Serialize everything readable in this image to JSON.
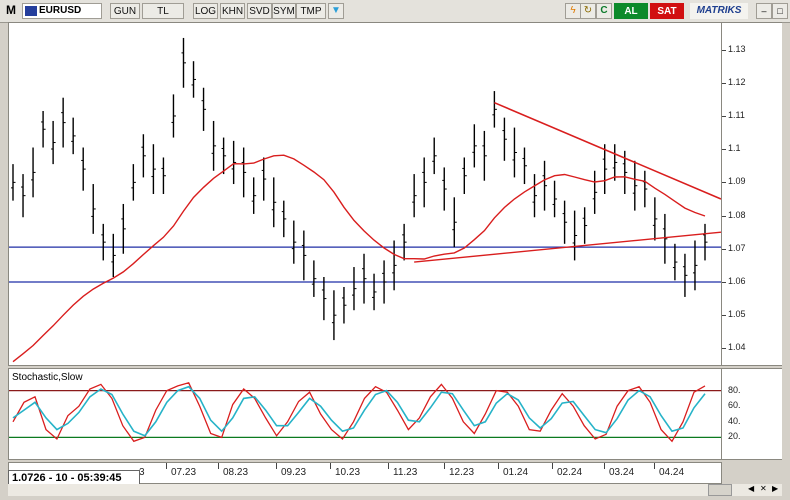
{
  "toolbar": {
    "menu_label": "M",
    "symbol": "EURUSD",
    "buttons": [
      "GUN",
      "TL",
      "LOG",
      "KHN",
      "SVD",
      "SYM",
      "TMP"
    ],
    "buy_label": "AL",
    "sell_label": "SAT",
    "brand": "MATRIKS",
    "colors": {
      "buy": "#0c8a2a",
      "sell": "#d10f10",
      "brand_text": "#1f3f8f"
    }
  },
  "chart": {
    "price_ticks": [
      "1.13",
      "1.12",
      "1.11",
      "1.1",
      "1.09",
      "1.08",
      "1.07",
      "1.06",
      "1.05",
      "1.04"
    ],
    "date_labels": [
      "07.23",
      "08.23",
      "09.23",
      "10.23",
      "11.23",
      "12.23",
      "01.24",
      "02.24",
      "03.24",
      "04.24"
    ],
    "oscillator_title": "Stochastic,Slow",
    "oscillator_ticks": [
      "80.",
      "60.",
      "40.",
      "20."
    ],
    "status_readout": "1.0726 - 10 - 05:39:45",
    "date_partial": "3"
  },
  "chart_data": {
    "type": "line",
    "title": "",
    "ylim": [
      1.035,
      1.138
    ],
    "horizontal_levels": [
      1.0705,
      1.06
    ],
    "price_series_note": "",
    "series": [
      {
        "name": "",
        "values": [
          1.09,
          1.086,
          1.093,
          1.106,
          1.102,
          1.108,
          1.104,
          1.094,
          1.082,
          1.072,
          1.068,
          1.076,
          1.09,
          1.098,
          1.094,
          1.092,
          1.11,
          1.126,
          1.121,
          1.112,
          1.101,
          1.098,
          1.096,
          1.093,
          1.086,
          1.091,
          1.084,
          1.079,
          1.072,
          1.068,
          1.061,
          1.055,
          1.05,
          1.053,
          1.058,
          1.061,
          1.057,
          1.06,
          1.065,
          1.072,
          1.086,
          1.09,
          1.098,
          1.088,
          1.078,
          1.092,
          1.101,
          1.098,
          1.112,
          1.103,
          1.099,
          1.095,
          1.086,
          1.089,
          1.085,
          1.078,
          1.074,
          1.077,
          1.087,
          1.094,
          1.096,
          1.093,
          1.089,
          1.088,
          1.079,
          1.073,
          1.066,
          1.062,
          1.065,
          1.072
        ]
      }
    ],
    "stochastic": {
      "fast": [
        40,
        65,
        72,
        30,
        18,
        48,
        60,
        82,
        88,
        70,
        35,
        15,
        20,
        55,
        80,
        86,
        90,
        60,
        25,
        20,
        62,
        82,
        70,
        45,
        22,
        40,
        66,
        78,
        50,
        30,
        18,
        40,
        70,
        85,
        78,
        55,
        30,
        45,
        72,
        88,
        70,
        40,
        25,
        50,
        80,
        78,
        60,
        30,
        28,
        55,
        76,
        60,
        35,
        18,
        24,
        60,
        80,
        85,
        65,
        30,
        15,
        40,
        78,
        86
      ],
      "slow": [
        45,
        55,
        65,
        45,
        30,
        38,
        52,
        72,
        82,
        75,
        50,
        28,
        22,
        40,
        65,
        80,
        85,
        70,
        42,
        28,
        45,
        70,
        72,
        55,
        35,
        35,
        52,
        70,
        60,
        42,
        28,
        32,
        55,
        75,
        80,
        65,
        42,
        40,
        58,
        78,
        76,
        55,
        35,
        40,
        64,
        76,
        68,
        45,
        32,
        44,
        64,
        66,
        48,
        30,
        26,
        44,
        68,
        80,
        72,
        48,
        28,
        32,
        58,
        76
      ],
      "upper": 80,
      "lower": 20
    },
    "colors": {
      "price": "#000000",
      "average": "#d91e1e",
      "level": "#1f2ea6",
      "trend": "#d91e1e",
      "stoch_fast": "#d91e1e",
      "stoch_slow": "#26b3c8",
      "band_upper": "#8b1a1a",
      "band_lower": "#0b7a20"
    }
  }
}
